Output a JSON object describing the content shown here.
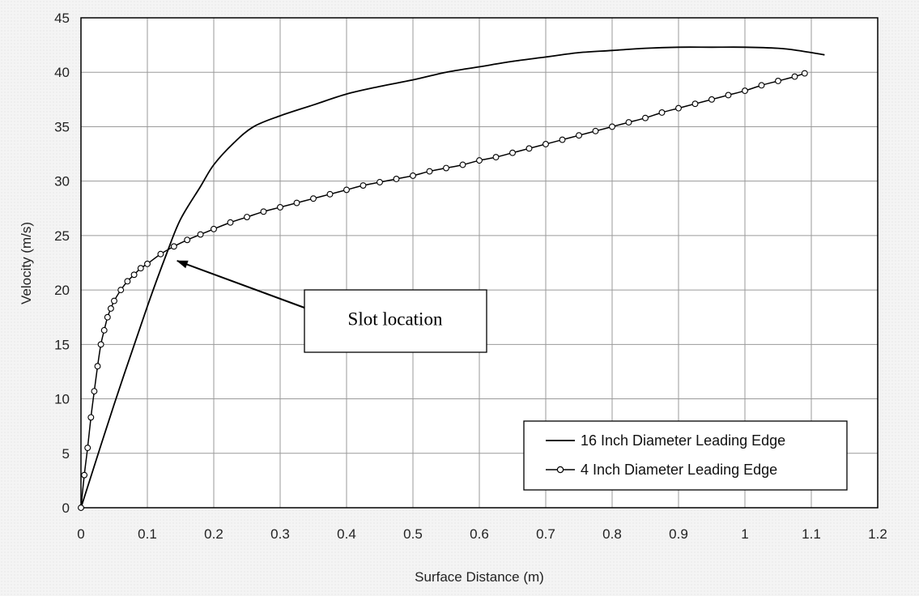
{
  "chart_data": {
    "type": "line",
    "title": "",
    "xlabel": "Surface Distance (m)",
    "ylabel": "Velocity (m/s)",
    "xlim": [
      0,
      1.2
    ],
    "ylim": [
      0,
      45
    ],
    "x_ticks": [
      0,
      0.1,
      0.2,
      0.3,
      0.4,
      0.5,
      0.6,
      0.7,
      0.8,
      0.9,
      1,
      1.1,
      1.2
    ],
    "x_tick_labels": [
      "0",
      "0.1",
      "0.2",
      "0.3",
      "0.4",
      "0.5",
      "0.6",
      "0.7",
      "0.8",
      "0.9",
      "1",
      "1.1",
      "1.2"
    ],
    "y_ticks": [
      0,
      5,
      10,
      15,
      20,
      25,
      30,
      35,
      40,
      45
    ],
    "y_tick_labels": [
      "0",
      "5",
      "10",
      "15",
      "20",
      "25",
      "30",
      "35",
      "40",
      "45"
    ],
    "grid": true,
    "legend_position": "bottom-right",
    "series": [
      {
        "name": "16 Inch Diameter Leading Edge",
        "marker": "none",
        "color": "#000000",
        "x": [
          0,
          0.05,
          0.1,
          0.13,
          0.15,
          0.18,
          0.2,
          0.23,
          0.26,
          0.3,
          0.35,
          0.4,
          0.45,
          0.5,
          0.55,
          0.6,
          0.65,
          0.7,
          0.75,
          0.8,
          0.85,
          0.9,
          0.95,
          1.0,
          1.05,
          1.08,
          1.12
        ],
        "values": [
          0,
          9.5,
          18.5,
          23.5,
          26.5,
          29.5,
          31.5,
          33.5,
          35.0,
          36.0,
          37.0,
          38.0,
          38.7,
          39.3,
          40.0,
          40.5,
          41.0,
          41.4,
          41.8,
          42.0,
          42.2,
          42.3,
          42.3,
          42.3,
          42.2,
          42.0,
          41.6
        ]
      },
      {
        "name": "4 Inch Diameter Leading Edge",
        "marker": "open-circle",
        "color": "#000000",
        "x": [
          0,
          0.005,
          0.01,
          0.015,
          0.02,
          0.025,
          0.03,
          0.035,
          0.04,
          0.045,
          0.05,
          0.06,
          0.07,
          0.08,
          0.09,
          0.1,
          0.12,
          0.14,
          0.16,
          0.18,
          0.2,
          0.225,
          0.25,
          0.275,
          0.3,
          0.325,
          0.35,
          0.375,
          0.4,
          0.425,
          0.45,
          0.475,
          0.5,
          0.525,
          0.55,
          0.575,
          0.6,
          0.625,
          0.65,
          0.675,
          0.7,
          0.725,
          0.75,
          0.775,
          0.8,
          0.825,
          0.85,
          0.875,
          0.9,
          0.925,
          0.95,
          0.975,
          1.0,
          1.025,
          1.05,
          1.075,
          1.09
        ],
        "values": [
          0,
          3.0,
          5.5,
          8.3,
          10.7,
          13.0,
          15.0,
          16.3,
          17.5,
          18.3,
          19.0,
          20.0,
          20.8,
          21.4,
          22.0,
          22.4,
          23.3,
          24.0,
          24.6,
          25.1,
          25.6,
          26.2,
          26.7,
          27.2,
          27.6,
          28.0,
          28.4,
          28.8,
          29.2,
          29.6,
          29.9,
          30.2,
          30.5,
          30.9,
          31.2,
          31.5,
          31.9,
          32.2,
          32.6,
          33.0,
          33.4,
          33.8,
          34.2,
          34.6,
          35.0,
          35.4,
          35.8,
          36.3,
          36.7,
          37.1,
          37.5,
          37.9,
          38.3,
          38.8,
          39.2,
          39.6,
          39.9
        ]
      }
    ],
    "annotation": {
      "text": "Slot location",
      "points_to": {
        "x": 0.14,
        "y": 22.9
      }
    }
  }
}
